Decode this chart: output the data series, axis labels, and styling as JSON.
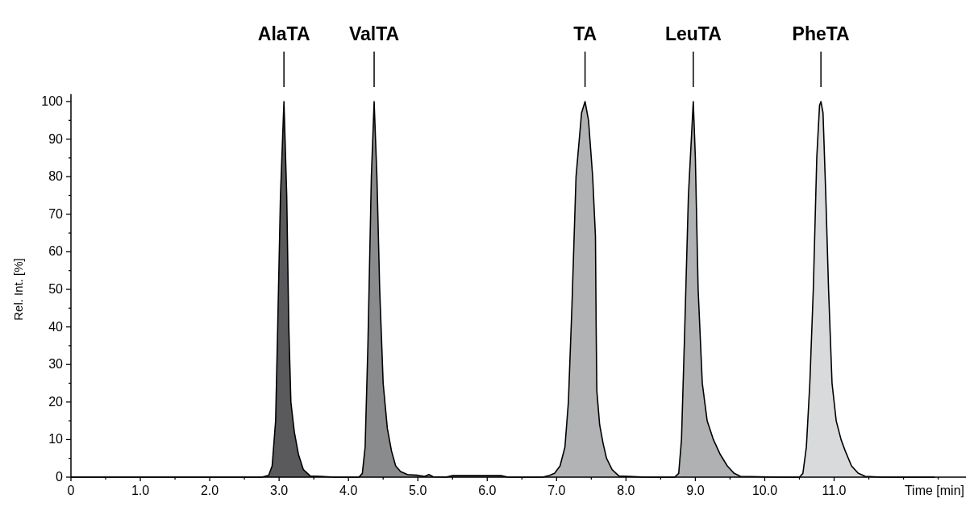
{
  "chart_data": {
    "type": "area",
    "xlabel": "Time [min]",
    "ylabel": "Rel. Int. [%]",
    "xlim": [
      0,
      12.9
    ],
    "ylim": [
      0,
      102
    ],
    "xticks": [
      0,
      {
        "value": 0.5,
        "label": null
      },
      {
        "value": 1,
        "label": "1.0"
      },
      {
        "value": 1.5,
        "label": null
      },
      {
        "value": 2,
        "label": "2.0"
      },
      {
        "value": 2.5,
        "label": null
      },
      {
        "value": 3,
        "label": "3.0"
      },
      {
        "value": 3.5,
        "label": null
      },
      {
        "value": 4,
        "label": "4.0"
      },
      {
        "value": 4.5,
        "label": null
      },
      {
        "value": 5,
        "label": "5.0"
      },
      {
        "value": 5.5,
        "label": null
      },
      {
        "value": 6,
        "label": "6.0"
      },
      {
        "value": 6.5,
        "label": null
      },
      {
        "value": 7,
        "label": "7.0"
      },
      {
        "value": 7.5,
        "label": null
      },
      {
        "value": 8,
        "label": "8.0"
      },
      {
        "value": 8.5,
        "label": null
      },
      {
        "value": 9,
        "label": "9.0"
      },
      {
        "value": 9.5,
        "label": null
      },
      {
        "value": 10,
        "label": "10.0"
      },
      {
        "value": 10.5,
        "label": null
      },
      {
        "value": 11,
        "label": "11.0"
      },
      {
        "value": 11.5,
        "label": null
      },
      {
        "value": 12,
        "label": null
      },
      {
        "value": 12.5,
        "label": null
      }
    ],
    "yticks": [
      0,
      {
        "value": 5,
        "label": null
      },
      10,
      {
        "value": 15,
        "label": null
      },
      20,
      {
        "value": 25,
        "label": null
      },
      30,
      {
        "value": 35,
        "label": null
      },
      40,
      {
        "value": 45,
        "label": null
      },
      50,
      {
        "value": 55,
        "label": null
      },
      60,
      {
        "value": 65,
        "label": null
      },
      70,
      {
        "value": 75,
        "label": null
      },
      80,
      {
        "value": 85,
        "label": null
      },
      90,
      {
        "value": 95,
        "label": null
      },
      100
    ],
    "grid": false,
    "annotations": [
      "AlaTA",
      "ValTA",
      "TA",
      "LeuTA",
      "PheTA"
    ],
    "series": [
      {
        "color": "#5a5a5c",
        "x": [
          0,
          2.75,
          2.85,
          2.9,
          2.95,
          2.98,
          3.02,
          3.07,
          3.11,
          3.14,
          3.17,
          3.22,
          3.28,
          3.35,
          3.45,
          3.6,
          3.8
        ],
        "values": [
          0,
          0,
          0.5,
          3,
          15,
          40,
          75,
          100,
          75,
          40,
          20,
          12,
          6,
          2,
          0.3,
          0.2,
          0
        ]
      },
      {
        "color": "#8a8b8d",
        "x": [
          3.8,
          4.15,
          4.2,
          4.24,
          4.28,
          4.33,
          4.37,
          4.41,
          4.45,
          4.5,
          4.56,
          4.62,
          4.68,
          4.75,
          4.85,
          5,
          5.1,
          5.16,
          5.22,
          5.4,
          5.5,
          6.2,
          6.3,
          6.5
        ],
        "values": [
          0,
          0,
          1,
          8,
          35,
          80,
          100,
          80,
          50,
          25,
          13,
          7,
          3,
          1.5,
          0.7,
          0.5,
          0.2,
          0.7,
          0.1,
          0,
          0.4,
          0.4,
          0,
          0
        ]
      },
      {
        "color": "#b2b3b5",
        "x": [
          6.5,
          6.8,
          6.9,
          6.97,
          7.05,
          7.12,
          7.17,
          7.22,
          7.28,
          7.36,
          7.41,
          7.46,
          7.52,
          7.56,
          7.57,
          7.58,
          7.62,
          7.67,
          7.72,
          7.8,
          7.9,
          8.3
        ],
        "values": [
          0,
          0,
          0.5,
          1,
          3,
          8,
          20,
          45,
          80,
          97,
          100,
          95,
          80,
          64,
          40,
          23,
          14,
          9,
          5,
          2,
          0.3,
          0
        ]
      },
      {
        "color": "#b0b1b3",
        "x": [
          8.3,
          8.7,
          8.76,
          8.8,
          8.84,
          8.9,
          8.97,
          9,
          9.04,
          9.1,
          9.17,
          9.26,
          9.36,
          9.46,
          9.56,
          9.65,
          10.2
        ],
        "values": [
          0,
          0,
          1,
          10,
          35,
          75,
          100,
          85,
          50,
          25,
          15,
          10,
          6,
          3,
          1,
          0.2,
          0
        ]
      },
      {
        "color": "#d9dadc",
        "x": [
          10.2,
          10.5,
          10.55,
          10.6,
          10.65,
          10.7,
          10.75,
          10.79,
          10.81,
          10.84,
          10.88,
          10.92,
          10.97,
          11.03,
          11.1,
          11.16,
          11.25,
          11.35,
          11.45,
          11.7,
          12.45
        ],
        "values": [
          0,
          0,
          1,
          8,
          25,
          50,
          85,
          99,
          100,
          97,
          75,
          50,
          25,
          15,
          10,
          7,
          3,
          1,
          0.2,
          0,
          0
        ]
      }
    ]
  }
}
